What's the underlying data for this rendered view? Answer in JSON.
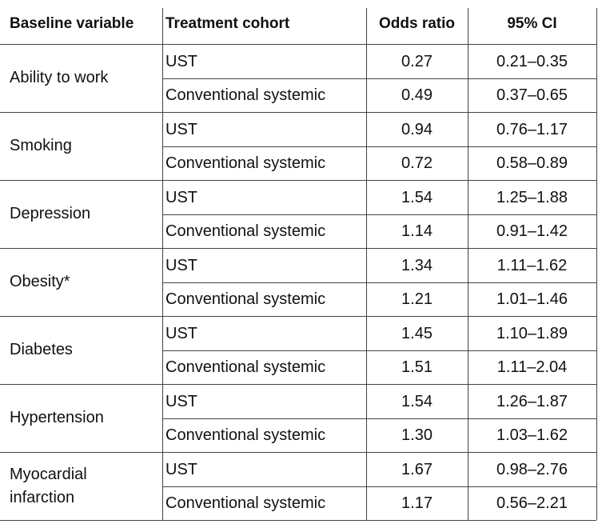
{
  "table": {
    "columns": [
      "Baseline variable",
      "Treatment cohort",
      "Odds ratio",
      "95% CI"
    ],
    "rows": [
      {
        "variable": "Ability to work",
        "cohorts": [
          {
            "cohort": "UST",
            "odds_ratio": "0.27",
            "ci": "0.21–0.35"
          },
          {
            "cohort": "Conventional systemic",
            "odds_ratio": "0.49",
            "ci": "0.37–0.65"
          }
        ]
      },
      {
        "variable": "Smoking",
        "cohorts": [
          {
            "cohort": "UST",
            "odds_ratio": "0.94",
            "ci": "0.76–1.17"
          },
          {
            "cohort": "Conventional systemic",
            "odds_ratio": "0.72",
            "ci": "0.58–0.89"
          }
        ]
      },
      {
        "variable": "Depression",
        "cohorts": [
          {
            "cohort": "UST",
            "odds_ratio": "1.54",
            "ci": "1.25–1.88"
          },
          {
            "cohort": "Conventional systemic",
            "odds_ratio": "1.14",
            "ci": "0.91–1.42"
          }
        ]
      },
      {
        "variable": "Obesity*",
        "cohorts": [
          {
            "cohort": "UST",
            "odds_ratio": "1.34",
            "ci": "1.11–1.62"
          },
          {
            "cohort": "Conventional systemic",
            "odds_ratio": "1.21",
            "ci": "1.01–1.46"
          }
        ]
      },
      {
        "variable": "Diabetes",
        "cohorts": [
          {
            "cohort": "UST",
            "odds_ratio": "1.45",
            "ci": "1.10–1.89"
          },
          {
            "cohort": "Conventional systemic",
            "odds_ratio": "1.51",
            "ci": "1.11–2.04"
          }
        ]
      },
      {
        "variable": "Hypertension",
        "cohorts": [
          {
            "cohort": "UST",
            "odds_ratio": "1.54",
            "ci": "1.26–1.87"
          },
          {
            "cohort": "Conventional systemic",
            "odds_ratio": "1.30",
            "ci": "1.03–1.62"
          }
        ]
      },
      {
        "variable": "Myocardial infarction",
        "cohorts": [
          {
            "cohort": "UST",
            "odds_ratio": "1.67",
            "ci": "0.98–2.76"
          },
          {
            "cohort": "Conventional systemic",
            "odds_ratio": "1.17",
            "ci": "0.56–2.21"
          }
        ]
      }
    ]
  }
}
